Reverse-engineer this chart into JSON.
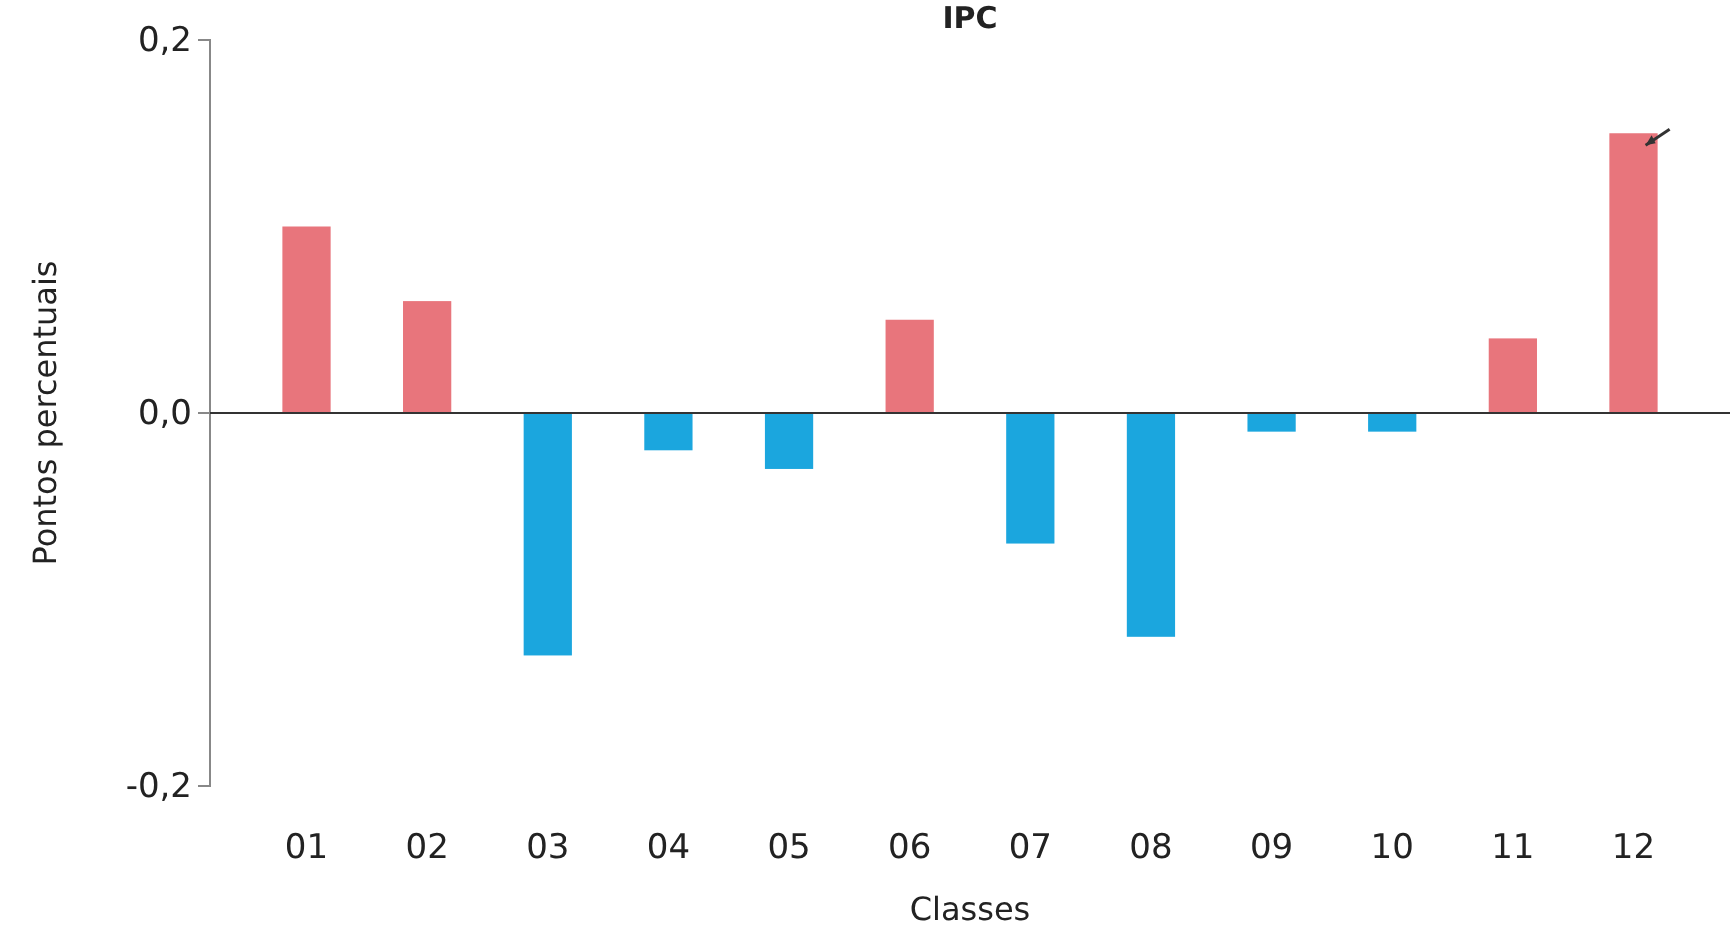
{
  "chart_data": {
    "type": "bar",
    "title": "IPC",
    "xlabel": "Classes",
    "ylabel": "Pontos percentuais",
    "categories": [
      "01",
      "02",
      "03",
      "04",
      "05",
      "06",
      "07",
      "08",
      "09",
      "10",
      "11",
      "12"
    ],
    "values": [
      0.1,
      0.06,
      -0.13,
      -0.02,
      -0.03,
      0.05,
      -0.07,
      -0.12,
      -0.01,
      -0.01,
      0.04,
      0.15
    ],
    "colors": [
      "#e8757c",
      "#e8757c",
      "#1ba6de",
      "#1ba6de",
      "#1ba6de",
      "#e8757c",
      "#1ba6de",
      "#1ba6de",
      "#1ba6de",
      "#1ba6de",
      "#e8757c",
      "#e8757c"
    ],
    "ylim": [
      -0.2,
      0.2
    ],
    "yticks": [
      {
        "value": -0.2,
        "label": "-0,2"
      },
      {
        "value": 0,
        "label": "0,0"
      },
      {
        "value": 0.2,
        "label": "0,2"
      }
    ]
  }
}
